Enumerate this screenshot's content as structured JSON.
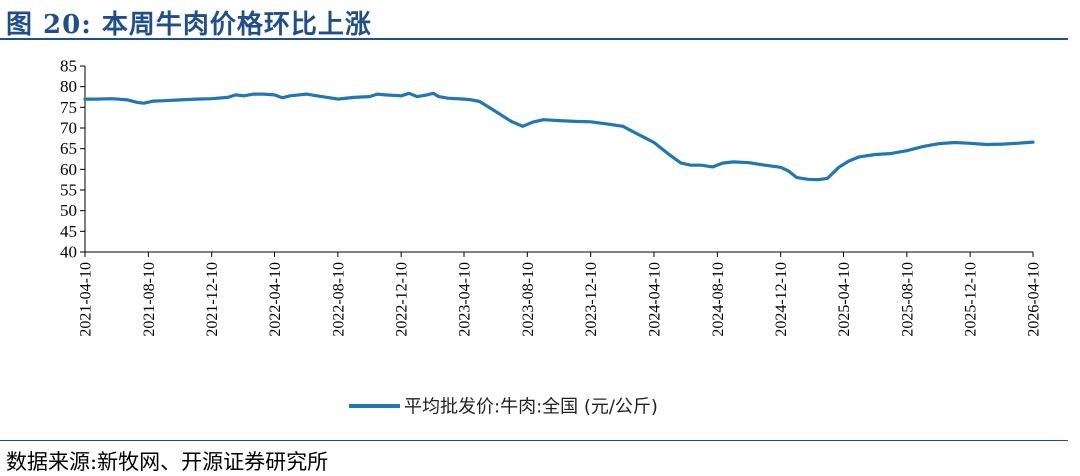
{
  "header": {
    "title": "图 20:  本周牛肉价格环比上涨"
  },
  "footer": {
    "source": "数据来源:新牧网、开源证券研究所"
  },
  "colors": {
    "accent": "#1f4e8c",
    "series": "#1f77b4"
  },
  "chart_data": {
    "type": "line",
    "title": "图 20:  本周牛肉价格环比上涨",
    "ylim": [
      40,
      85
    ],
    "yticks": [
      40,
      45,
      50,
      55,
      60,
      65,
      70,
      75,
      80,
      85
    ],
    "xlim": [
      "2021-04-10",
      "2026-04-10"
    ],
    "xticks": [
      "2021-04-10",
      "2021-08-10",
      "2021-12-10",
      "2022-04-10",
      "2022-08-10",
      "2022-12-10",
      "2023-04-10",
      "2023-08-10",
      "2023-12-10",
      "2024-04-10",
      "2024-08-10",
      "2024-12-10",
      "2025-04-10",
      "2025-08-10",
      "2025-12-10",
      "2026-04-10"
    ],
    "grid": false,
    "legend": "bottom-center",
    "series": [
      {
        "name": "平均批发价:牛肉:全国 (元/公斤)",
        "color": "#1f77b4",
        "points": [
          [
            "2021-04-10",
            77.0
          ],
          [
            "2021-05-01",
            77.0
          ],
          [
            "2021-06-01",
            77.1
          ],
          [
            "2021-07-01",
            76.8
          ],
          [
            "2021-07-20",
            76.2
          ],
          [
            "2021-08-01",
            76.0
          ],
          [
            "2021-08-20",
            76.5
          ],
          [
            "2021-09-10",
            76.6
          ],
          [
            "2021-10-10",
            76.8
          ],
          [
            "2021-11-10",
            77.0
          ],
          [
            "2021-12-10",
            77.1
          ],
          [
            "2022-01-10",
            77.4
          ],
          [
            "2022-01-25",
            78.0
          ],
          [
            "2022-02-10",
            77.8
          ],
          [
            "2022-03-01",
            78.2
          ],
          [
            "2022-03-20",
            78.2
          ],
          [
            "2022-04-10",
            78.0
          ],
          [
            "2022-04-25",
            77.3
          ],
          [
            "2022-05-10",
            77.8
          ],
          [
            "2022-06-10",
            78.2
          ],
          [
            "2022-07-10",
            77.6
          ],
          [
            "2022-08-10",
            77.0
          ],
          [
            "2022-09-10",
            77.4
          ],
          [
            "2022-10-10",
            77.6
          ],
          [
            "2022-10-25",
            78.2
          ],
          [
            "2022-11-10",
            78.0
          ],
          [
            "2022-12-10",
            77.8
          ],
          [
            "2022-12-25",
            78.4
          ],
          [
            "2023-01-10",
            77.6
          ],
          [
            "2023-01-25",
            77.9
          ],
          [
            "2023-02-10",
            78.4
          ],
          [
            "2023-02-20",
            77.6
          ],
          [
            "2023-03-10",
            77.2
          ],
          [
            "2023-04-10",
            77.0
          ],
          [
            "2023-04-25",
            76.8
          ],
          [
            "2023-05-10",
            76.4
          ],
          [
            "2023-06-10",
            74.0
          ],
          [
            "2023-07-10",
            71.6
          ],
          [
            "2023-08-01",
            70.4
          ],
          [
            "2023-08-20",
            71.4
          ],
          [
            "2023-09-10",
            72.0
          ],
          [
            "2023-10-10",
            71.8
          ],
          [
            "2023-11-10",
            71.6
          ],
          [
            "2023-12-10",
            71.5
          ],
          [
            "2024-01-10",
            71.0
          ],
          [
            "2024-02-10",
            70.4
          ],
          [
            "2024-03-10",
            68.5
          ],
          [
            "2024-04-10",
            66.5
          ],
          [
            "2024-05-10",
            63.5
          ],
          [
            "2024-06-01",
            61.5
          ],
          [
            "2024-06-20",
            61.0
          ],
          [
            "2024-07-10",
            61.0
          ],
          [
            "2024-08-01",
            60.6
          ],
          [
            "2024-08-20",
            61.5
          ],
          [
            "2024-09-10",
            61.8
          ],
          [
            "2024-10-10",
            61.6
          ],
          [
            "2024-11-10",
            61.0
          ],
          [
            "2024-12-10",
            60.5
          ],
          [
            "2024-12-25",
            59.6
          ],
          [
            "2025-01-10",
            58.0
          ],
          [
            "2025-02-01",
            57.6
          ],
          [
            "2025-02-20",
            57.5
          ],
          [
            "2025-03-10",
            57.8
          ],
          [
            "2025-04-01",
            60.5
          ],
          [
            "2025-04-20",
            62.0
          ],
          [
            "2025-05-10",
            63.0
          ],
          [
            "2025-06-10",
            63.6
          ],
          [
            "2025-07-10",
            63.8
          ],
          [
            "2025-08-10",
            64.5
          ],
          [
            "2025-09-10",
            65.5
          ],
          [
            "2025-10-10",
            66.2
          ],
          [
            "2025-11-10",
            66.5
          ],
          [
            "2025-12-10",
            66.3
          ],
          [
            "2026-01-10",
            66.0
          ],
          [
            "2026-02-10",
            66.1
          ],
          [
            "2026-03-10",
            66.3
          ],
          [
            "2026-04-10",
            66.6
          ]
        ]
      }
    ]
  }
}
